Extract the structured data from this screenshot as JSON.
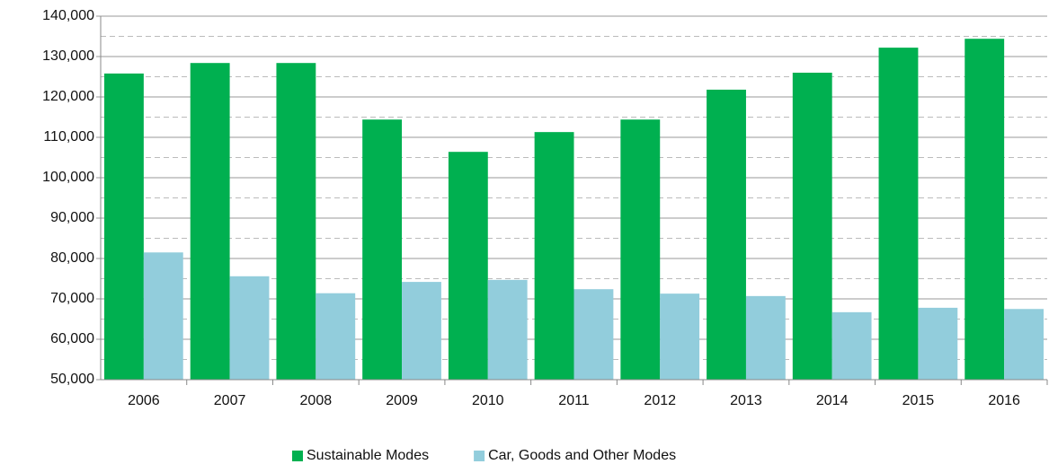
{
  "chart_data": {
    "type": "bar",
    "categories": [
      "2006",
      "2007",
      "2008",
      "2009",
      "2010",
      "2011",
      "2012",
      "2013",
      "2014",
      "2015",
      "2016"
    ],
    "series": [
      {
        "name": "Sustainable Modes",
        "color": "#00b050",
        "values": [
          125800,
          128400,
          128400,
          114400,
          106400,
          111300,
          114400,
          121800,
          126000,
          132200,
          134400
        ]
      },
      {
        "name": "Car, Goods and Other Modes",
        "color": "#92cddc",
        "values": [
          81500,
          75600,
          71400,
          74200,
          74700,
          72400,
          71300,
          70700,
          66700,
          67800,
          67500
        ]
      }
    ],
    "ylim": [
      50000,
      140000
    ],
    "yticks": [
      {
        "value": 50000,
        "label": "50,000"
      },
      {
        "value": 60000,
        "label": "60,000"
      },
      {
        "value": 70000,
        "label": "70,000"
      },
      {
        "value": 80000,
        "label": "80,000"
      },
      {
        "value": 90000,
        "label": "90,000"
      },
      {
        "value": 100000,
        "label": "100,000"
      },
      {
        "value": 110000,
        "label": "110,000"
      },
      {
        "value": 120000,
        "label": "120,000"
      },
      {
        "value": 130000,
        "label": "130,000"
      },
      {
        "value": 140000,
        "label": "140,000"
      }
    ],
    "minor_yticks": [
      55000,
      65000,
      75000,
      85000,
      95000,
      105000,
      115000,
      125000,
      135000
    ],
    "grid": true,
    "legend": "bottom"
  }
}
